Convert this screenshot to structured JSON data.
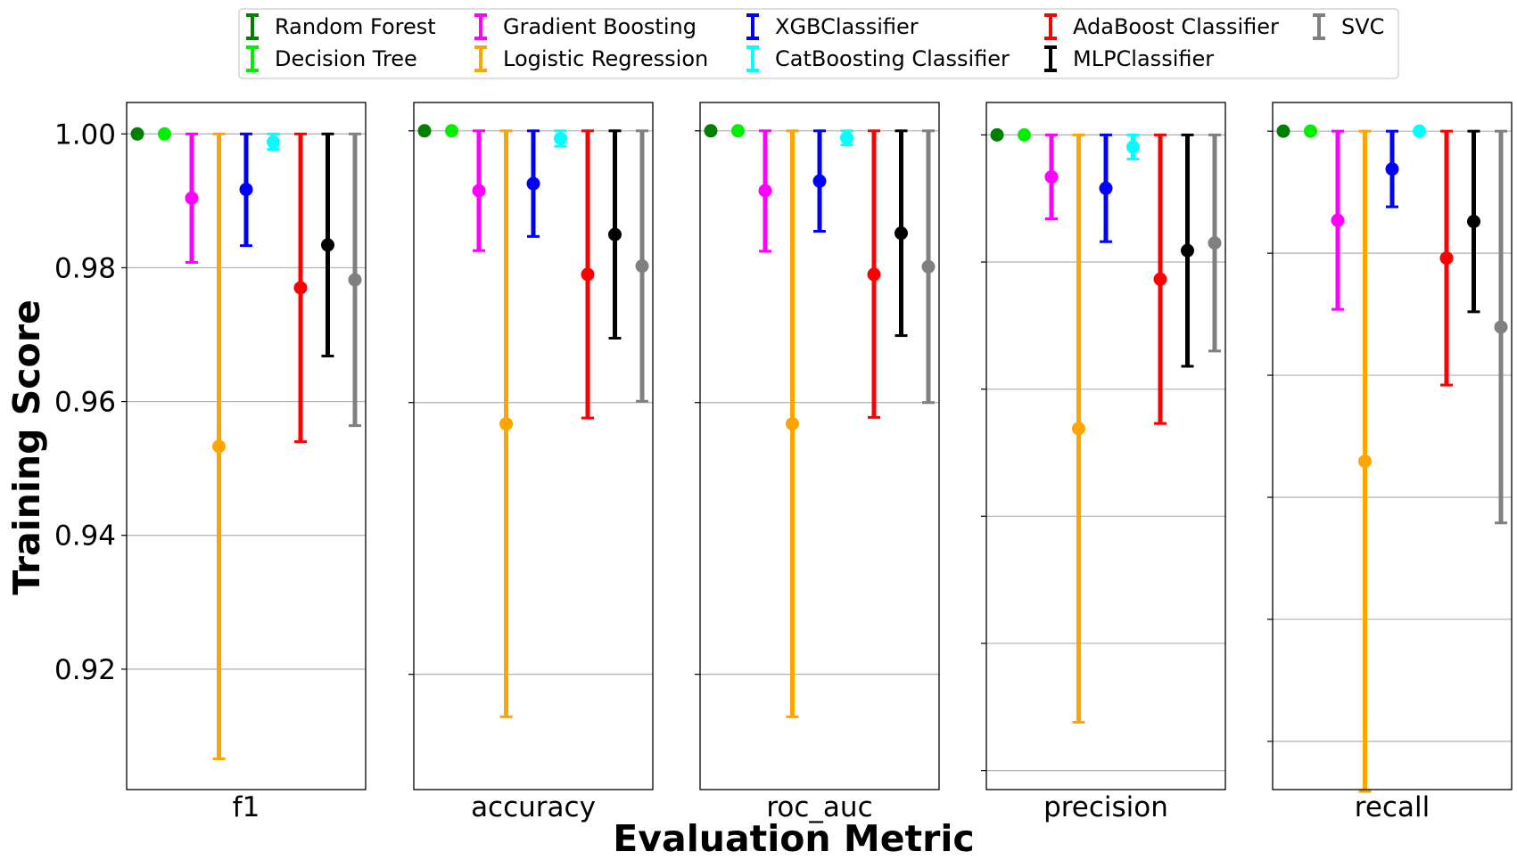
{
  "chart_data": {
    "type": "errorbar",
    "xlabel": "Evaluation Metric",
    "ylabel": "Training Score",
    "grid": "horizontal",
    "legend_position": "top-center",
    "series": [
      {
        "name": "Random Forest",
        "color": "#008000"
      },
      {
        "name": "Gradient Boosting",
        "color": "#ff00ff"
      },
      {
        "name": "XGBClassifier",
        "color": "#0000ff"
      },
      {
        "name": "AdaBoost Classifier",
        "color": "#ff0000"
      },
      {
        "name": "SVC",
        "color": "#808080"
      },
      {
        "name": "Decision Tree",
        "color": "#00ee00"
      },
      {
        "name": "Logistic Regression",
        "color": "#ffa500"
      },
      {
        "name": "CatBoosting Classifier",
        "color": "#00ffff"
      },
      {
        "name": "MLPClassifier",
        "color": "#000000"
      }
    ],
    "plot_order": [
      "Random Forest",
      "Decision Tree",
      "Gradient Boosting",
      "Logistic Regression",
      "XGBClassifier",
      "CatBoosting Classifier",
      "AdaBoost Classifier",
      "MLPClassifier",
      "SVC"
    ],
    "panels": [
      {
        "metric": "f1",
        "ylim": [
          0.902,
          1.0047
        ],
        "yticks": [
          0.92,
          0.94,
          0.96,
          0.98,
          1.0
        ],
        "ytick_labels": [
          "0.92",
          "0.94",
          "0.96",
          "0.98",
          "1.00"
        ],
        "points": [
          {
            "model": "Random Forest",
            "mean": 1.0,
            "low": 1.0,
            "high": 1.0
          },
          {
            "model": "Decision Tree",
            "mean": 1.0,
            "low": 1.0,
            "high": 1.0
          },
          {
            "model": "Gradient Boosting",
            "mean": 0.9904,
            "low": 0.9808,
            "high": 1.0
          },
          {
            "model": "Logistic Regression",
            "mean": 0.9533,
            "low": 0.9066,
            "high": 1.0
          },
          {
            "model": "XGBClassifier",
            "mean": 0.9917,
            "low": 0.9833,
            "high": 1.0
          },
          {
            "model": "CatBoosting Classifier",
            "mean": 0.9988,
            "low": 0.9977,
            "high": 1.0
          },
          {
            "model": "AdaBoost Classifier",
            "mean": 0.977,
            "low": 0.954,
            "high": 1.0
          },
          {
            "model": "MLPClassifier",
            "mean": 0.9834,
            "low": 0.9668,
            "high": 1.0
          },
          {
            "model": "SVC",
            "mean": 0.9782,
            "low": 0.9564,
            "high": 1.0
          }
        ]
      },
      {
        "metric": "accuracy",
        "ylim": [
          0.8977,
          1.0044
        ],
        "yticks": [
          0.9156,
          0.9578,
          1.0
        ],
        "ytick_labels": [],
        "points": [
          {
            "model": "Random Forest",
            "mean": 1.0,
            "low": 1.0,
            "high": 1.0
          },
          {
            "model": "Decision Tree",
            "mean": 1.0,
            "low": 1.0,
            "high": 1.0
          },
          {
            "model": "Gradient Boosting",
            "mean": 0.9907,
            "low": 0.9814,
            "high": 1.0
          },
          {
            "model": "Logistic Regression",
            "mean": 0.9545,
            "low": 0.909,
            "high": 1.0
          },
          {
            "model": "XGBClassifier",
            "mean": 0.9918,
            "low": 0.9836,
            "high": 1.0
          },
          {
            "model": "CatBoosting Classifier",
            "mean": 0.9988,
            "low": 0.9976,
            "high": 1.0
          },
          {
            "model": "AdaBoost Classifier",
            "mean": 0.9777,
            "low": 0.9554,
            "high": 1.0
          },
          {
            "model": "MLPClassifier",
            "mean": 0.9839,
            "low": 0.9678,
            "high": 1.0
          },
          {
            "model": "SVC",
            "mean": 0.979,
            "low": 0.958,
            "high": 1.0
          }
        ]
      },
      {
        "metric": "roc_auc",
        "ylim": [
          0.8977,
          1.0044
        ],
        "yticks": [
          0.9156,
          0.9578,
          1.0
        ],
        "ytick_labels": [],
        "points": [
          {
            "model": "Random Forest",
            "mean": 1.0,
            "low": 1.0,
            "high": 1.0
          },
          {
            "model": "Decision Tree",
            "mean": 1.0,
            "low": 1.0,
            "high": 1.0
          },
          {
            "model": "Gradient Boosting",
            "mean": 0.9907,
            "low": 0.9813,
            "high": 1.0
          },
          {
            "model": "Logistic Regression",
            "mean": 0.9545,
            "low": 0.909,
            "high": 1.0
          },
          {
            "model": "XGBClassifier",
            "mean": 0.9922,
            "low": 0.9844,
            "high": 1.0
          },
          {
            "model": "CatBoosting Classifier",
            "mean": 0.9989,
            "low": 0.9978,
            "high": 1.0
          },
          {
            "model": "AdaBoost Classifier",
            "mean": 0.9777,
            "low": 0.9555,
            "high": 1.0
          },
          {
            "model": "MLPClassifier",
            "mean": 0.9841,
            "low": 0.9682,
            "high": 1.0
          },
          {
            "model": "SVC",
            "mean": 0.9789,
            "low": 0.9578,
            "high": 1.0
          }
        ]
      },
      {
        "metric": "precision",
        "ylim": [
          0.897,
          1.0051
        ],
        "yticks": [
          0.9,
          0.92,
          0.94,
          0.96,
          0.98,
          1.0
        ],
        "ytick_labels": [],
        "points": [
          {
            "model": "Random Forest",
            "mean": 1.0,
            "low": 1.0,
            "high": 1.0
          },
          {
            "model": "Decision Tree",
            "mean": 1.0,
            "low": 1.0,
            "high": 1.0
          },
          {
            "model": "Gradient Boosting",
            "mean": 0.9934,
            "low": 0.9868,
            "high": 1.0
          },
          {
            "model": "Logistic Regression",
            "mean": 0.9538,
            "low": 0.9076,
            "high": 1.0
          },
          {
            "model": "XGBClassifier",
            "mean": 0.9916,
            "low": 0.9832,
            "high": 1.0
          },
          {
            "model": "CatBoosting Classifier",
            "mean": 0.9981,
            "low": 0.9962,
            "high": 1.0
          },
          {
            "model": "AdaBoost Classifier",
            "mean": 0.9773,
            "low": 0.9546,
            "high": 1.0
          },
          {
            "model": "MLPClassifier",
            "mean": 0.9818,
            "low": 0.9636,
            "high": 1.0
          },
          {
            "model": "SVC",
            "mean": 0.983,
            "low": 0.966,
            "high": 1.0
          }
        ]
      },
      {
        "metric": "recall",
        "ylim": [
          0.8921,
          1.0047
        ],
        "yticks": [
          0.9,
          0.92,
          0.94,
          0.96,
          0.98,
          1.0
        ],
        "ytick_labels": [],
        "points": [
          {
            "model": "Random Forest",
            "mean": 1.0,
            "low": 1.0,
            "high": 1.0
          },
          {
            "model": "Decision Tree",
            "mean": 1.0,
            "low": 1.0,
            "high": 1.0
          },
          {
            "model": "Gradient Boosting",
            "mean": 0.9854,
            "low": 0.9708,
            "high": 1.0
          },
          {
            "model": "Logistic Regression",
            "mean": 0.9459,
            "low": 0.8918,
            "high": 1.0
          },
          {
            "model": "XGBClassifier",
            "mean": 0.9938,
            "low": 0.9876,
            "high": 1.0
          },
          {
            "model": "CatBoosting Classifier",
            "mean": 1.0,
            "low": 1.0,
            "high": 1.0
          },
          {
            "model": "AdaBoost Classifier",
            "mean": 0.9792,
            "low": 0.9584,
            "high": 1.0
          },
          {
            "model": "MLPClassifier",
            "mean": 0.9852,
            "low": 0.9704,
            "high": 1.0
          },
          {
            "model": "SVC",
            "mean": 0.9679,
            "low": 0.9358,
            "high": 1.0
          }
        ]
      }
    ]
  }
}
